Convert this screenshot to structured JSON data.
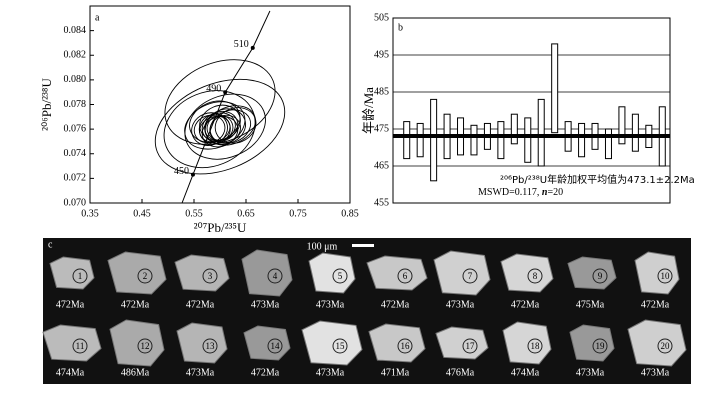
{
  "chart_data": [
    {
      "type": "concordia",
      "panel": "a",
      "x_label": "²⁰⁷Pb/²³⁵U",
      "y_label": "²⁰⁶Pb/²³⁸U",
      "xlim": [
        0.35,
        0.85
      ],
      "xticks": [
        0.35,
        0.45,
        0.55,
        0.65,
        0.75,
        0.85
      ],
      "ylim": [
        0.07,
        0.086
      ],
      "yticks": [
        {
          "value": 0.07,
          "label": "0.070"
        },
        0.072,
        0.074,
        0.076,
        0.078,
        {
          "value": 0.08,
          "label": "0.080"
        },
        0.082,
        0.084
      ],
      "concordia": {
        "x": [
          0.527,
          0.548,
          0.61,
          0.663,
          0.696
        ],
        "y": [
          0.07,
          0.0723,
          0.079,
          0.0826,
          0.0856
        ]
      },
      "age_marks": {
        "labels": [
          450,
          490,
          510
        ],
        "x": [
          0.548,
          0.61,
          0.663
        ],
        "y": [
          0.0723,
          0.079,
          0.0826
        ]
      },
      "ellipses": {
        "x": [
          0.59,
          0.6,
          0.58,
          0.61,
          0.6,
          0.59,
          0.62,
          0.58,
          0.6,
          0.61,
          0.59,
          0.6,
          0.62,
          0.58,
          0.61,
          0.6,
          0.59,
          0.63,
          0.6,
          0.6
        ],
        "y": [
          0.076,
          0.0761,
          0.076,
          0.0762,
          0.0762,
          0.076,
          0.0763,
          0.076,
          0.0765,
          0.076,
          0.0763,
          0.0782,
          0.0762,
          0.076,
          0.0762,
          0.0758,
          0.0766,
          0.0763,
          0.0762,
          0.0762
        ],
        "x_err": [
          0.03,
          0.025,
          0.09,
          0.04,
          0.035,
          0.03,
          0.05,
          0.035,
          0.04,
          0.03,
          0.06,
          0.11,
          0.04,
          0.03,
          0.08,
          0.035,
          0.05,
          0.04,
          0.03,
          0.13
        ],
        "y_err": [
          0.0012,
          0.001,
          0.003,
          0.0014,
          0.0012,
          0.001,
          0.0015,
          0.0013,
          0.0014,
          0.0011,
          0.0018,
          0.0032,
          0.0013,
          0.0011,
          0.0025,
          0.0012,
          0.0016,
          0.0014,
          0.0011,
          0.0035
        ]
      },
      "color": "#000000"
    },
    {
      "type": "box",
      "panel": "b",
      "y_label": "年龄/Ma",
      "ylim": [
        455,
        505
      ],
      "yticks": [
        455,
        465,
        475,
        485,
        495,
        505
      ],
      "grid": true,
      "values": [
        472,
        472,
        472,
        473,
        473,
        472,
        473,
        472,
        475,
        472,
        474,
        486,
        473,
        472,
        473,
        471,
        476,
        474,
        473,
        473
      ],
      "errors": [
        5,
        4.5,
        11,
        6,
        5,
        4,
        3.5,
        5,
        4,
        6,
        9,
        12,
        4,
        4.5,
        3.5,
        4,
        5,
        5,
        3,
        8
      ],
      "mean": 473.1,
      "annotation": "²⁰⁶Pb/²³⁸U年龄加权平均值为473.1±2.2Ma",
      "mswd": "MSWD=0.117, ",
      "n_label": "n",
      "n_value": "=20",
      "color": "#000000"
    }
  ],
  "panel_c": {
    "panel": "c",
    "scale_bar": "100 μm",
    "grains": [
      {
        "number": 1,
        "age": "472Ma"
      },
      {
        "number": 2,
        "age": "472Ma"
      },
      {
        "number": 3,
        "age": "472Ma"
      },
      {
        "number": 4,
        "age": "473Ma"
      },
      {
        "number": 5,
        "age": "473Ma"
      },
      {
        "number": 6,
        "age": "472Ma"
      },
      {
        "number": 7,
        "age": "473Ma"
      },
      {
        "number": 8,
        "age": "472Ma"
      },
      {
        "number": 9,
        "age": "475Ma"
      },
      {
        "number": 10,
        "age": "472Ma"
      },
      {
        "number": 11,
        "age": "474Ma"
      },
      {
        "number": 12,
        "age": "486Ma"
      },
      {
        "number": 13,
        "age": "473Ma"
      },
      {
        "number": 14,
        "age": "472Ma"
      },
      {
        "number": 15,
        "age": "473Ma"
      },
      {
        "number": 16,
        "age": "471Ma"
      },
      {
        "number": 17,
        "age": "476Ma"
      },
      {
        "number": 18,
        "age": "474Ma"
      },
      {
        "number": 19,
        "age": "473Ma"
      },
      {
        "number": 20,
        "age": "473Ma"
      }
    ]
  }
}
